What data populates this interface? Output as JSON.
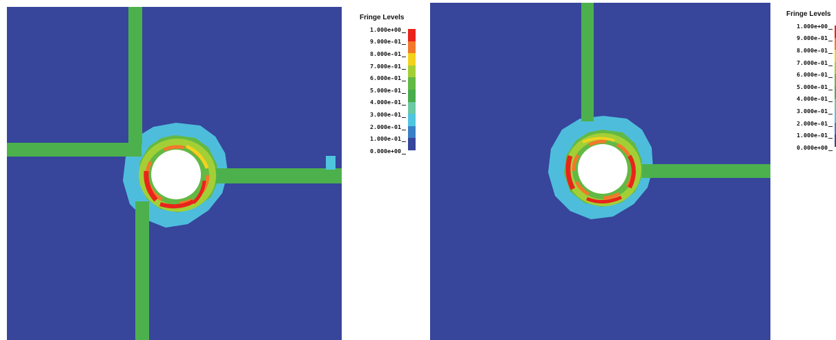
{
  "legend": {
    "title": "Fringe Levels",
    "levels": [
      "1.000e+00",
      "9.000e-01",
      "8.000e-01",
      "7.000e-01",
      "6.000e-01",
      "5.000e-01",
      "4.000e-01",
      "3.000e-01",
      "2.000e-01",
      "1.000e-01",
      "0.000e+00"
    ],
    "colors": [
      "#e8241b",
      "#f3782a",
      "#f2d21e",
      "#a3cf36",
      "#62b944",
      "#48ab4c",
      "#6bc9a4",
      "#4fc5df",
      "#3b7fc6",
      "#37459b"
    ]
  },
  "colors": {
    "background_field": "#37459b",
    "fiber_green": "#4cb14c",
    "halo_cyan": "#4fc4df",
    "hole": "#ffffff"
  }
}
